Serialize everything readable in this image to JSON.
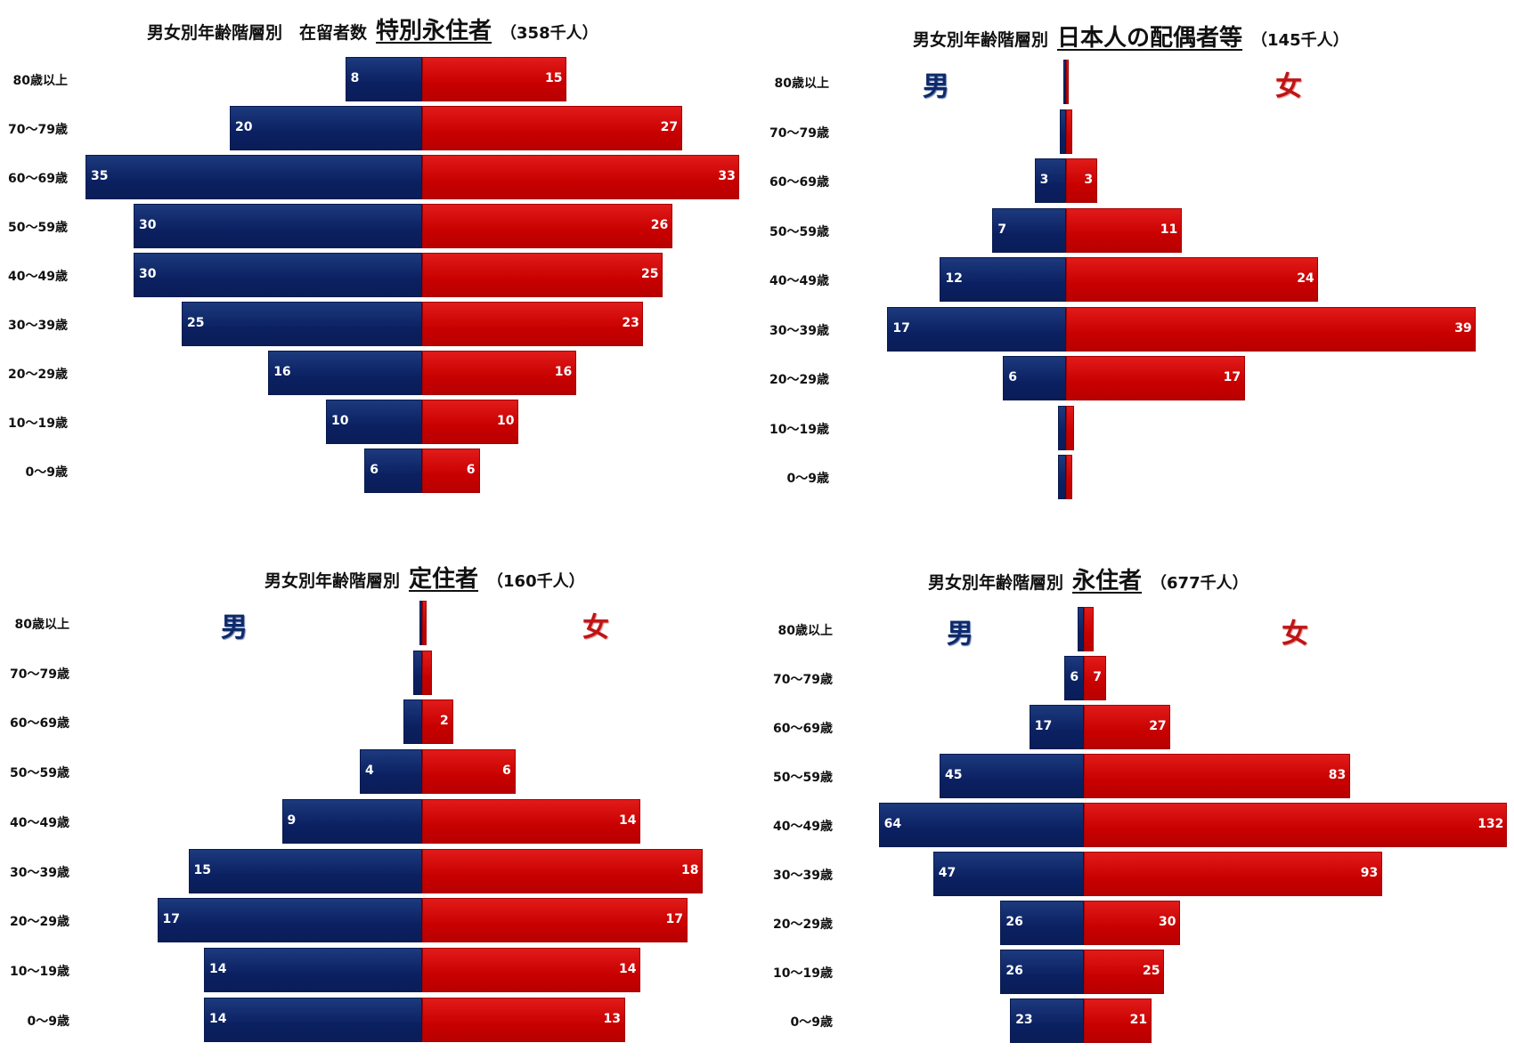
{
  "age_groups": [
    "80歳以上",
    "70～79歳",
    "60～69歳",
    "50～59歳",
    "40～49歳",
    "30～39歳",
    "20～29歳",
    "10～19歳",
    "0～9歳"
  ],
  "sex_labels": {
    "male": "男",
    "female": "女"
  },
  "colors": {
    "male": "#0b2061",
    "female": "#c80000"
  },
  "chart_data": [
    {
      "type": "bar",
      "subtype": "population-pyramid",
      "title": {
        "prefix": "男女別年齢階層別　在留者数",
        "name": "特別永住者",
        "total": "（358千人）"
      },
      "categories": [
        "80歳以上",
        "70～79歳",
        "60～69歳",
        "50～59歳",
        "40～49歳",
        "30～39歳",
        "20～29歳",
        "10～19歳",
        "0～9歳"
      ],
      "series": [
        {
          "name": "男",
          "values": [
            8,
            20,
            35,
            30,
            30,
            25,
            16,
            10,
            6
          ],
          "labels": [
            "8",
            "20",
            "35",
            "30",
            "30",
            "25",
            "16",
            "10",
            "6"
          ]
        },
        {
          "name": "女",
          "values": [
            15,
            27,
            33,
            26,
            25,
            23,
            16,
            10,
            6
          ],
          "labels": [
            "15",
            "27",
            "33",
            "26",
            "25",
            "23",
            "16",
            "10",
            "6"
          ]
        }
      ],
      "show_sex_labels": false
    },
    {
      "type": "bar",
      "subtype": "population-pyramid",
      "title": {
        "prefix": "男女別年齢階層別",
        "name": "日本人の配偶者等",
        "total": "（145千人）"
      },
      "categories": [
        "80歳以上",
        "70～79歳",
        "60～69歳",
        "50～59歳",
        "40～49歳",
        "30～39歳",
        "20～29歳",
        "10～19歳",
        "0～9歳"
      ],
      "series": [
        {
          "name": "男",
          "values": [
            0.2,
            0.6,
            3,
            7,
            12,
            17,
            6,
            0.8,
            0.8
          ],
          "labels": [
            "",
            "",
            "3",
            "7",
            "12",
            "17",
            "6",
            "",
            ""
          ]
        },
        {
          "name": "女",
          "values": [
            0.2,
            0.6,
            3,
            11,
            24,
            39,
            17,
            0.8,
            0.6
          ],
          "labels": [
            "",
            "",
            "3",
            "11",
            "24",
            "39",
            "17",
            "",
            ""
          ]
        }
      ],
      "show_sex_labels": true
    },
    {
      "type": "bar",
      "subtype": "population-pyramid",
      "title": {
        "prefix": "男女別年齢階層別",
        "name": "定住者",
        "total": "（160千人）"
      },
      "categories": [
        "80歳以上",
        "70～79歳",
        "60～69歳",
        "50～59歳",
        "40～49歳",
        "30～39歳",
        "20～29歳",
        "10～19歳",
        "0～9歳"
      ],
      "series": [
        {
          "name": "男",
          "values": [
            0.2,
            0.6,
            1.2,
            4,
            9,
            15,
            17,
            14,
            14
          ],
          "labels": [
            "",
            "",
            "",
            "4",
            "9",
            "15",
            "17",
            "14",
            "14"
          ]
        },
        {
          "name": "女",
          "values": [
            0.3,
            0.6,
            2,
            6,
            14,
            18,
            17,
            14,
            13
          ],
          "labels": [
            "",
            "",
            "2",
            "6",
            "14",
            "18",
            "17",
            "14",
            "13"
          ]
        }
      ],
      "show_sex_labels": true
    },
    {
      "type": "bar",
      "subtype": "population-pyramid",
      "title": {
        "prefix": "男女別年齢階層別",
        "name": "永住者",
        "total": "（677千人）"
      },
      "categories": [
        "80歳以上",
        "70～79歳",
        "60～69歳",
        "50～59歳",
        "40～49歳",
        "30～39歳",
        "20～29歳",
        "10～19歳",
        "0～9歳"
      ],
      "series": [
        {
          "name": "男",
          "values": [
            2,
            6,
            17,
            45,
            64,
            47,
            26,
            26,
            23
          ],
          "labels": [
            "",
            "6",
            "17",
            "45",
            "64",
            "47",
            "26",
            "26",
            "23"
          ]
        },
        {
          "name": "女",
          "values": [
            3,
            7,
            27,
            83,
            132,
            93,
            30,
            25,
            21
          ],
          "labels": [
            "",
            "7",
            "27",
            "83",
            "132",
            "93",
            "30",
            "25",
            "21"
          ]
        }
      ],
      "show_sex_labels": true
    }
  ]
}
